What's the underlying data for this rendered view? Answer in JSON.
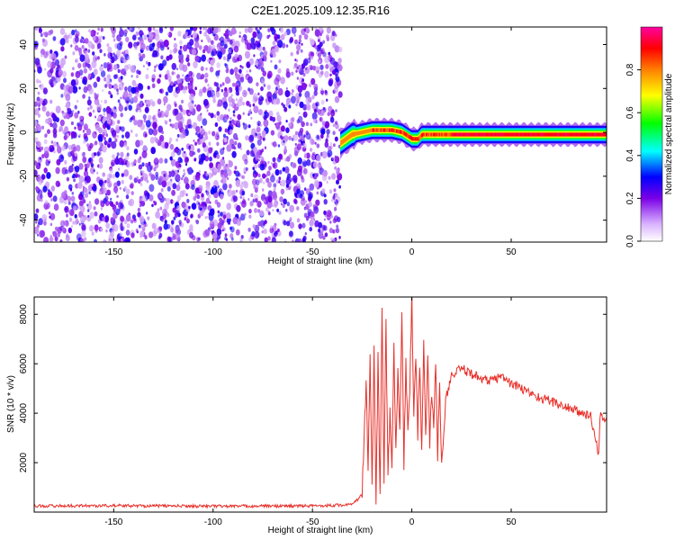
{
  "figure": {
    "title": "C2E1.2025.109.12.35.R16"
  },
  "chart_data": [
    {
      "type": "heatmap",
      "xlabel": "Height of straight line (km)",
      "ylabel": "Frequency (Hz)",
      "xlim": [
        -190,
        98
      ],
      "ylim": [
        -50,
        48
      ],
      "x_ticks": [
        -150,
        -100,
        -50,
        0,
        50
      ],
      "y_ticks": [
        -40,
        -20,
        0,
        20,
        40
      ],
      "grid": false,
      "noise_region": {
        "x_from": -190,
        "x_to": -36,
        "dominant_amplitude": "low (0.1-0.25)"
      },
      "signal_band": {
        "x_from": -36,
        "x_to": 98,
        "centerline": [
          [
            -36,
            -5
          ],
          [
            -33,
            -3
          ],
          [
            -30,
            -1
          ],
          [
            -25,
            0
          ],
          [
            -20,
            1
          ],
          [
            -15,
            1
          ],
          [
            -10,
            1
          ],
          [
            -5,
            0
          ],
          [
            0,
            -3
          ],
          [
            3,
            -3
          ],
          [
            5,
            -1
          ],
          [
            10,
            -1
          ],
          [
            20,
            -1
          ],
          [
            30,
            -1
          ],
          [
            40,
            -1
          ],
          [
            50,
            -1
          ],
          [
            60,
            -1
          ],
          [
            70,
            -1
          ],
          [
            80,
            -1
          ],
          [
            98,
            -1
          ]
        ],
        "peak_amplitude": "high (0.8-1.0) for x > 20"
      },
      "colorbar": {
        "label": "Normalized spectral amplitude",
        "range": [
          0,
          1
        ],
        "ticks": [
          "0.0",
          "0.2",
          "0.4",
          "0.6",
          "0.8"
        ],
        "colormap": [
          "#ffffff",
          "#7a00e6",
          "#0000ff",
          "#00ffff",
          "#00ff00",
          "#ffff00",
          "#ff8000",
          "#ff0000",
          "#ff00a0"
        ]
      }
    },
    {
      "type": "line",
      "xlabel": "Height of straight line (km)",
      "ylabel": "SNR (10 * v/v)",
      "xlim": [
        -190,
        98
      ],
      "ylim": [
        0,
        8700
      ],
      "x_ticks": [
        -150,
        -100,
        -50,
        0,
        50
      ],
      "y_ticks": [
        2000,
        4000,
        6000,
        8000
      ],
      "grid": false,
      "series": [
        {
          "color": "#e8302a",
          "x": [
            -190,
            -150,
            -100,
            -50,
            -30,
            -25,
            -23,
            -22,
            -21,
            -20,
            -19,
            -18,
            -17,
            -16,
            -15,
            -14,
            -13,
            -12,
            -11,
            -10,
            -9,
            -8,
            -7,
            -6,
            -5,
            -4,
            -3,
            -2,
            -1,
            0,
            1,
            2,
            3,
            4,
            5,
            6,
            7,
            8,
            9,
            10,
            11,
            12,
            13,
            14,
            15,
            17,
            20,
            25,
            30,
            35,
            40,
            45,
            50,
            55,
            60,
            65,
            70,
            75,
            80,
            85,
            90,
            94,
            95,
            96,
            98
          ],
          "y": [
            250,
            260,
            240,
            250,
            300,
            700,
            5300,
            2000,
            6100,
            1000,
            6800,
            500,
            6200,
            800,
            8200,
            1200,
            7500,
            1500,
            4000,
            2000,
            6500,
            2500,
            5500,
            3000,
            7800,
            2000,
            6000,
            3500,
            5000,
            8700,
            4000,
            6500,
            3200,
            5800,
            2500,
            6800,
            3000,
            6200,
            2800,
            5000,
            3500,
            6000,
            2000,
            5500,
            1800,
            4500,
            5500,
            5800,
            5600,
            5400,
            5300,
            5500,
            5200,
            5000,
            4800,
            4600,
            4500,
            4300,
            4200,
            4000,
            3900,
            2300,
            4200,
            3600,
            3700
          ]
        }
      ]
    }
  ]
}
